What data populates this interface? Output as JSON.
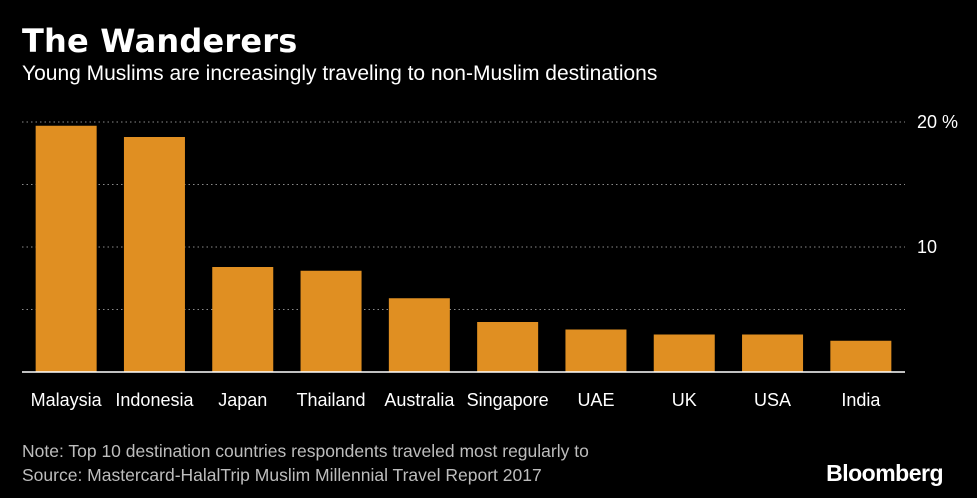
{
  "title": "The Wanderers",
  "subtitle": "Young Muslims are increasingly traveling to non-Muslim destinations",
  "note": "Note: Top 10 destination countries respondents traveled most regularly to",
  "source": "Source: Mastercard-HalalTrip Muslim Millennial Travel Report 2017",
  "logo": "Bloomberg",
  "colors": {
    "bar": "#e08f22",
    "background": "#000000",
    "grid": "#8a8a8a"
  },
  "chart_data": {
    "type": "bar",
    "categories": [
      "Malaysia",
      "Indonesia",
      "Japan",
      "Thailand",
      "Australia",
      "Singapore",
      "UAE",
      "UK",
      "USA",
      "India"
    ],
    "values": [
      19.7,
      18.8,
      8.4,
      8.1,
      5.9,
      4.0,
      3.4,
      3.0,
      3.0,
      2.5
    ],
    "ylim": [
      0,
      20
    ],
    "yticks": [
      0,
      5,
      10,
      15,
      20
    ],
    "ytick_labels": {
      "20": "20 %",
      "10": "10"
    },
    "title": "The Wanderers",
    "xlabel": "",
    "ylabel": "",
    "grid": true
  }
}
